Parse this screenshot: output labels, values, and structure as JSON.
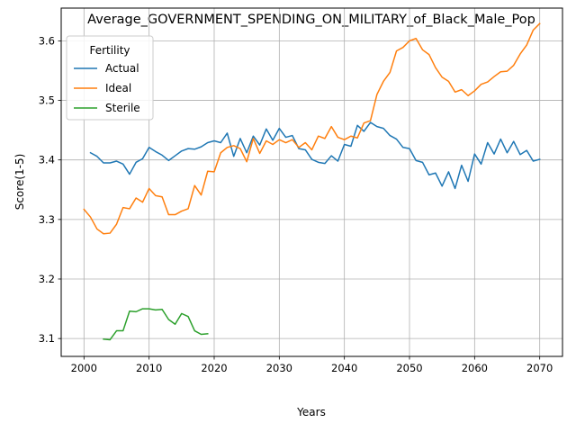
{
  "chart_data": {
    "type": "line",
    "title": "Average_GOVERNMENT_SPENDING_ON_MILITARY_of_Black_Male_Pop",
    "xlabel": "Years",
    "ylabel": "Score(1-5)",
    "xlim": [
      1996.5,
      2073.5
    ],
    "ylim": [
      3.07,
      3.655
    ],
    "xticks": [
      2000,
      2010,
      2020,
      2030,
      2040,
      2050,
      2060,
      2070
    ],
    "yticks": [
      3.1,
      3.2,
      3.3,
      3.4,
      3.5,
      3.6
    ],
    "ytick_labels": [
      "3.1",
      "3.2",
      "3.3",
      "3.4",
      "3.5",
      "3.6"
    ],
    "grid": true,
    "legend": {
      "title": "Fertility",
      "placement": "top-left"
    },
    "series": [
      {
        "name": "Actual",
        "color": "#1f77b4",
        "x": [
          2001,
          2002,
          2003,
          2004,
          2005,
          2006,
          2007,
          2008,
          2009,
          2010,
          2011,
          2012,
          2013,
          2014,
          2015,
          2016,
          2017,
          2018,
          2019,
          2020,
          2021,
          2022,
          2023,
          2024,
          2025,
          2026,
          2027,
          2028,
          2029,
          2030,
          2031,
          2032,
          2033,
          2034,
          2035,
          2036,
          2037,
          2038,
          2039,
          2040,
          2041,
          2042,
          2043,
          2044,
          2045,
          2046,
          2047,
          2048,
          2049,
          2050,
          2051,
          2052,
          2053,
          2054,
          2055,
          2056,
          2057,
          2058,
          2059,
          2060,
          2061,
          2062,
          2063,
          2064,
          2065,
          2066,
          2067,
          2068,
          2069,
          2070
        ],
        "values": [
          3.412,
          3.406,
          3.395,
          3.395,
          3.398,
          3.393,
          3.376,
          3.396,
          3.402,
          3.421,
          3.414,
          3.408,
          3.399,
          3.407,
          3.415,
          3.419,
          3.418,
          3.422,
          3.429,
          3.432,
          3.429,
          3.445,
          3.406,
          3.436,
          3.412,
          3.44,
          3.425,
          3.452,
          3.433,
          3.453,
          3.438,
          3.441,
          3.419,
          3.417,
          3.401,
          3.396,
          3.394,
          3.407,
          3.398,
          3.426,
          3.423,
          3.458,
          3.448,
          3.463,
          3.456,
          3.453,
          3.441,
          3.435,
          3.421,
          3.419,
          3.399,
          3.396,
          3.375,
          3.378,
          3.356,
          3.38,
          3.352,
          3.391,
          3.364,
          3.41,
          3.393,
          3.429,
          3.41,
          3.435,
          3.412,
          3.431,
          3.409,
          3.416,
          3.398,
          3.401
        ]
      },
      {
        "name": "Ideal",
        "color": "#ff7f0e",
        "x": [
          2000,
          2001,
          2002,
          2003,
          2004,
          2005,
          2006,
          2007,
          2008,
          2009,
          2010,
          2011,
          2012,
          2013,
          2014,
          2015,
          2016,
          2017,
          2018,
          2019,
          2020,
          2021,
          2022,
          2023,
          2024,
          2025,
          2026,
          2027,
          2028,
          2029,
          2030,
          2031,
          2032,
          2033,
          2034,
          2035,
          2036,
          2037,
          2038,
          2039,
          2040,
          2041,
          2042,
          2043,
          2044,
          2045,
          2046,
          2047,
          2048,
          2049,
          2050,
          2051,
          2052,
          2053,
          2054,
          2055,
          2056,
          2057,
          2058,
          2059,
          2060,
          2061,
          2062,
          2063,
          2064,
          2065,
          2066,
          2067,
          2068,
          2069,
          2070
        ],
        "values": [
          3.317,
          3.304,
          3.284,
          3.276,
          3.277,
          3.292,
          3.32,
          3.318,
          3.336,
          3.329,
          3.352,
          3.34,
          3.338,
          3.308,
          3.308,
          3.314,
          3.318,
          3.357,
          3.341,
          3.381,
          3.38,
          3.412,
          3.421,
          3.424,
          3.419,
          3.397,
          3.436,
          3.411,
          3.432,
          3.426,
          3.434,
          3.429,
          3.434,
          3.421,
          3.429,
          3.417,
          3.44,
          3.436,
          3.456,
          3.438,
          3.434,
          3.44,
          3.437,
          3.462,
          3.466,
          3.51,
          3.532,
          3.547,
          3.583,
          3.589,
          3.6,
          3.604,
          3.585,
          3.577,
          3.555,
          3.539,
          3.532,
          3.514,
          3.518,
          3.508,
          3.516,
          3.527,
          3.531,
          3.54,
          3.548,
          3.549,
          3.559,
          3.578,
          3.593,
          3.618,
          3.629
        ]
      },
      {
        "name": "Sterile",
        "color": "#2ca02c",
        "x": [
          2003,
          2004,
          2005,
          2006,
          2007,
          2008,
          2009,
          2010,
          2011,
          2012,
          2013,
          2014,
          2015,
          2016,
          2017,
          2018,
          2019
        ],
        "values": [
          3.099,
          3.098,
          3.113,
          3.113,
          3.146,
          3.145,
          3.15,
          3.15,
          3.148,
          3.149,
          3.132,
          3.124,
          3.142,
          3.137,
          3.113,
          3.107,
          3.108
        ]
      }
    ]
  }
}
